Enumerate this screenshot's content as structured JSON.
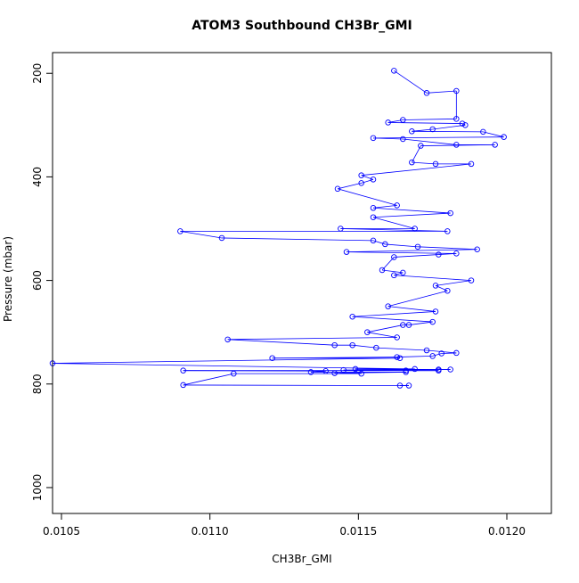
{
  "chart_data": {
    "type": "line",
    "title": "ATOM3 Southbound CH3Br_GMI",
    "xlabel": "CH3Br_GMI",
    "ylabel": "Pressure (mbar)",
    "xlim": [
      0.01047,
      0.01215
    ],
    "ylim": [
      1050,
      160
    ],
    "y_reversed": true,
    "x_ticks": [
      0.0105,
      0.011,
      0.0115,
      0.012
    ],
    "x_tick_labels": [
      "0.0105",
      "0.0110",
      "0.0115",
      "0.0120"
    ],
    "y_ticks": [
      200,
      400,
      600,
      800,
      1000
    ],
    "y_tick_labels": [
      "200",
      "400",
      "600",
      "800",
      "1000"
    ],
    "grid": false,
    "legend": "none",
    "series_color": "#0000ff",
    "marker": "open-circle",
    "series": [
      {
        "x": [
          0.01162,
          0.01173,
          0.01183,
          0.01183,
          0.01165,
          0.0116,
          0.01185,
          0.01186,
          0.01175,
          0.01168,
          0.01192,
          0.01199,
          0.01155,
          0.01165,
          0.01183,
          0.01196,
          0.01171,
          0.01168,
          0.01176,
          0.01188,
          0.01151,
          0.01155,
          0.01151,
          0.01143,
          0.01163,
          0.01155,
          0.01181,
          0.01155,
          0.01169,
          0.01144,
          0.0118,
          0.0109,
          0.01104,
          0.01155,
          0.01159,
          0.0117,
          0.0119,
          0.01146,
          0.01183,
          0.01177,
          0.01162,
          0.01158,
          0.01165,
          0.01162,
          0.01188,
          0.01176,
          0.0118,
          0.0116,
          0.01176,
          0.01148,
          0.01175,
          0.01167,
          0.01165,
          0.01153,
          0.01163,
          0.01106,
          0.01142,
          0.01148,
          0.01156,
          0.01173,
          0.01183,
          0.01178,
          0.01175,
          0.01163,
          0.01121,
          0.01164,
          0.01047,
          0.01169,
          0.01149,
          0.01177,
          0.01181,
          0.01145,
          0.01166,
          0.01177,
          0.01091,
          0.01139,
          0.01134,
          0.01166,
          0.01142,
          0.01151,
          0.01108,
          0.01091,
          0.01167,
          0.01164
        ],
        "y": [
          195,
          238,
          234,
          288,
          290,
          295,
          297,
          300,
          308,
          312,
          313,
          323,
          325,
          327,
          338,
          338,
          340,
          372,
          375,
          375,
          397,
          405,
          412,
          423,
          455,
          460,
          470,
          478,
          500,
          500,
          505,
          505,
          518,
          523,
          530,
          535,
          540,
          545,
          548,
          550,
          555,
          580,
          585,
          590,
          600,
          610,
          620,
          650,
          660,
          670,
          680,
          686,
          686,
          700,
          710,
          714,
          725,
          725,
          730,
          735,
          740,
          741,
          746,
          748,
          750,
          750,
          760,
          771,
          771,
          772,
          772,
          773,
          774,
          774,
          774,
          775,
          777,
          777,
          779,
          780,
          780,
          802,
          803,
          803
        ]
      }
    ]
  }
}
